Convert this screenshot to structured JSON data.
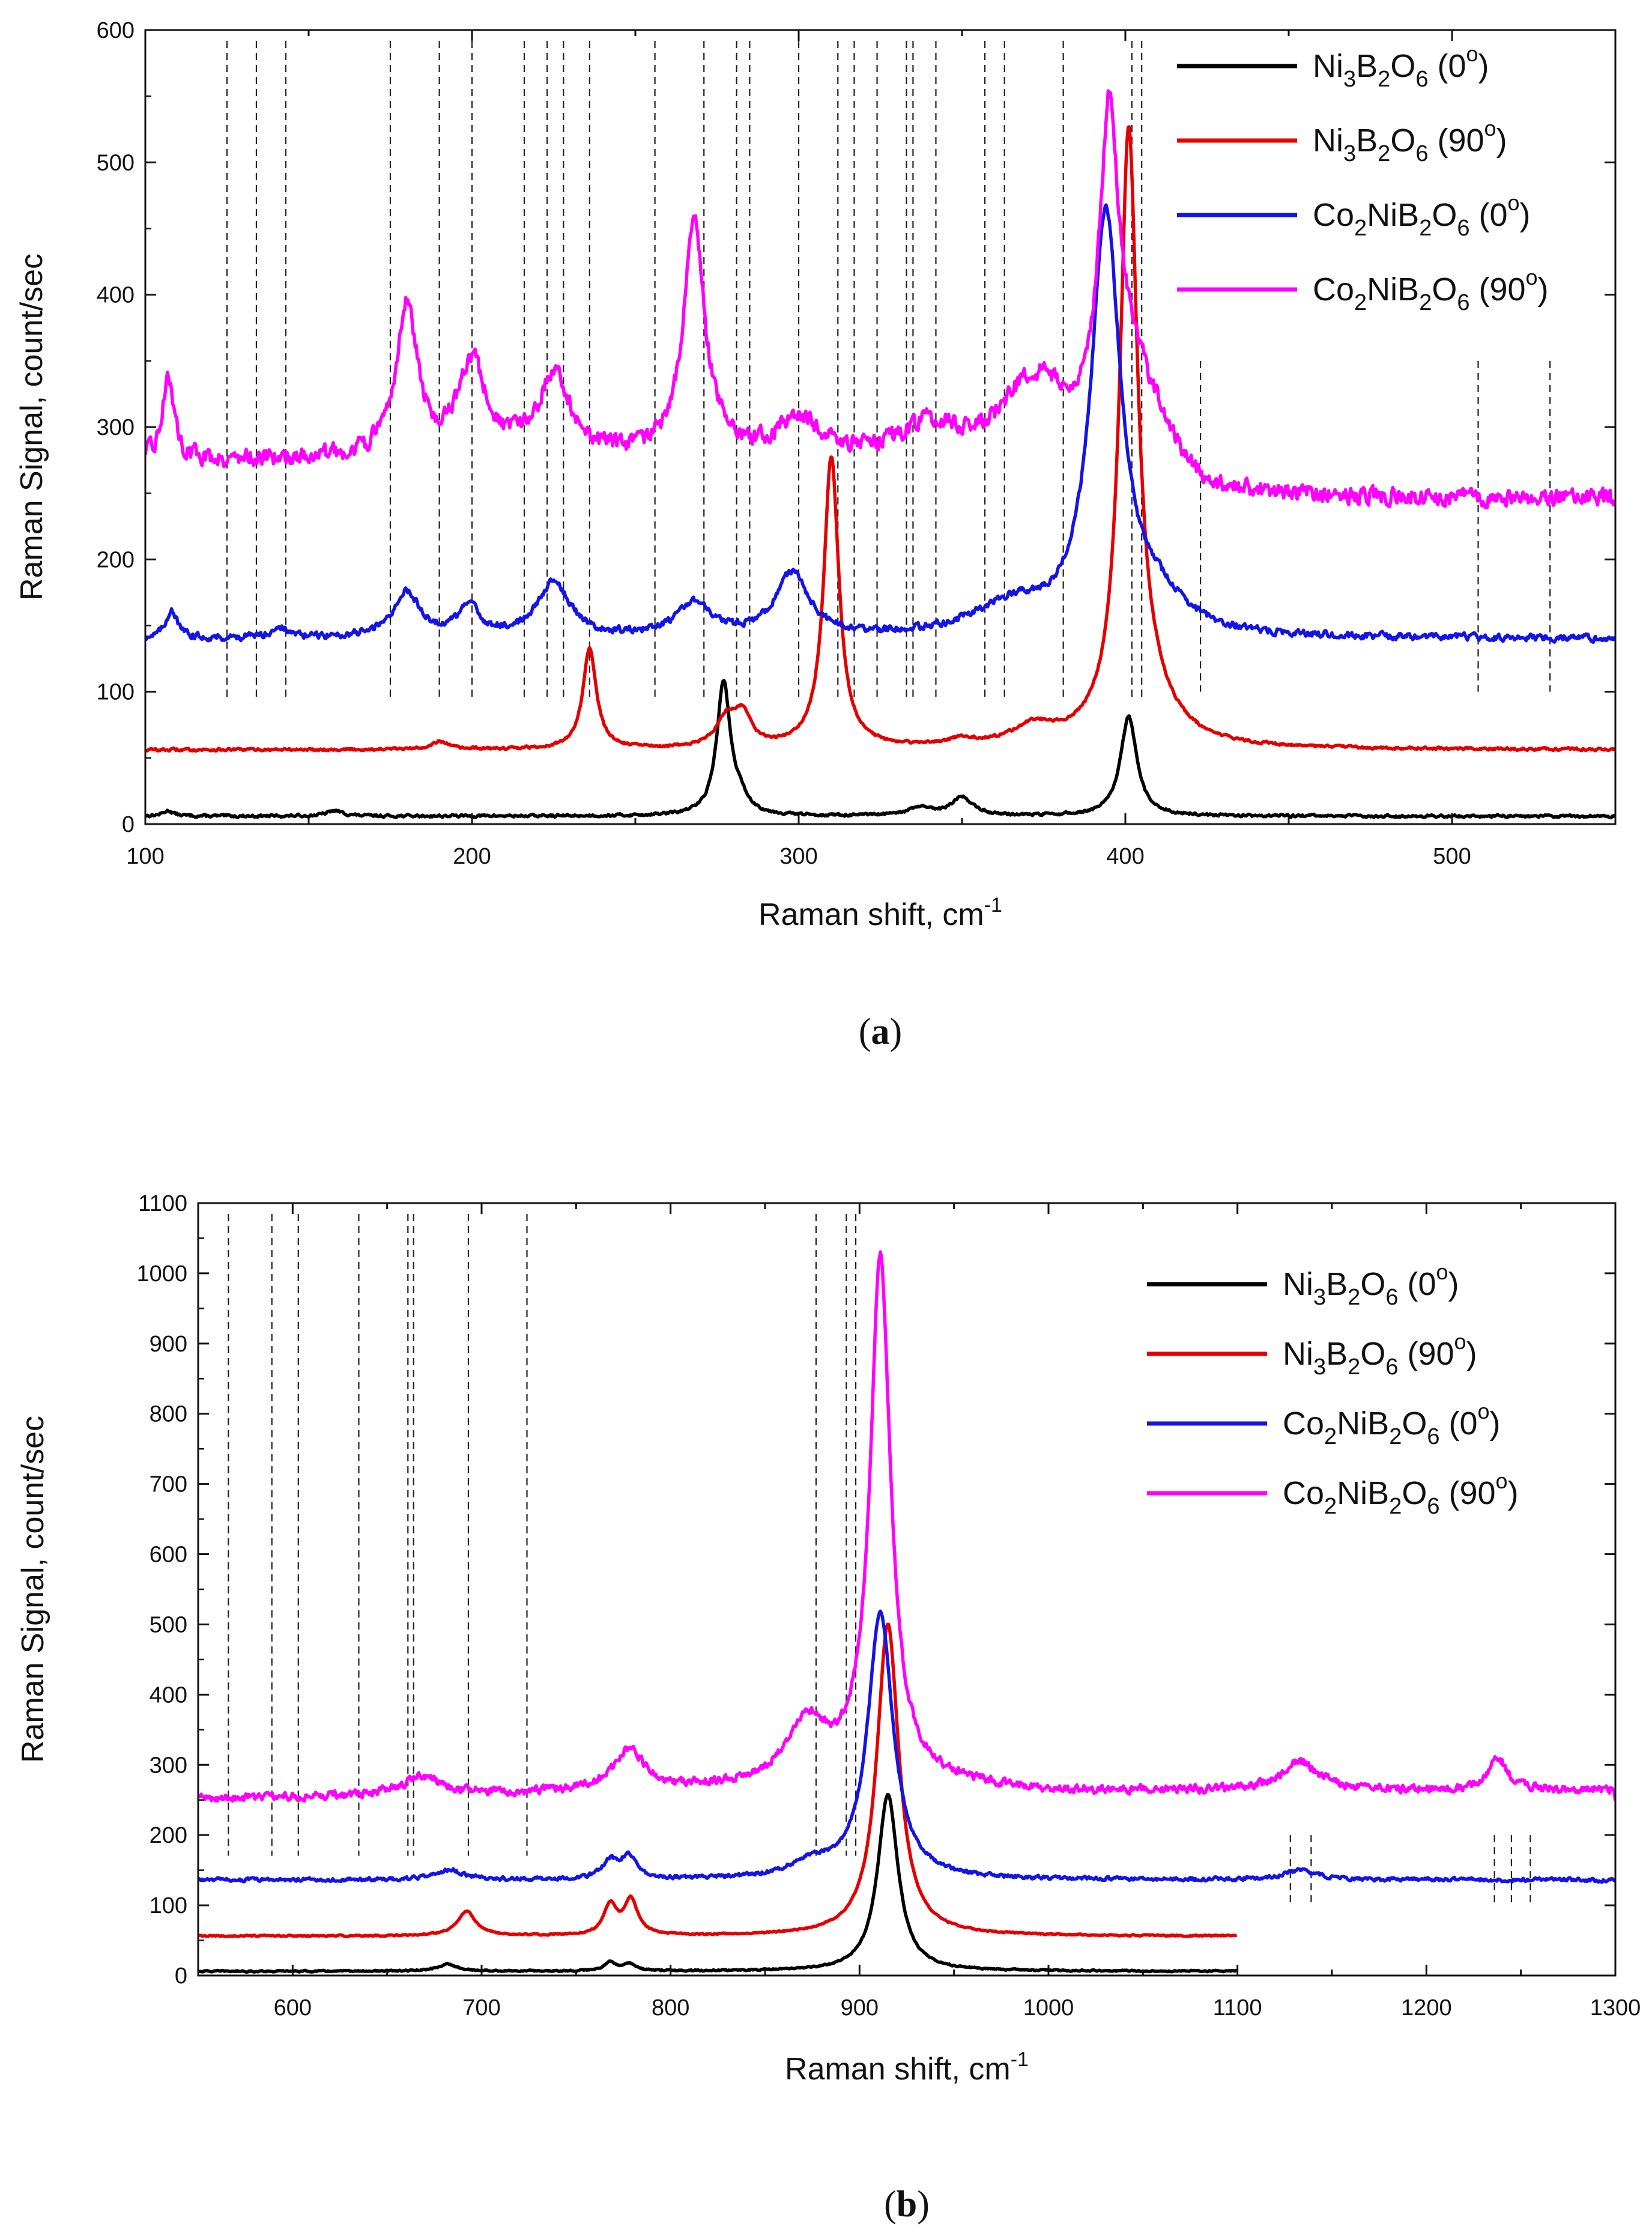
{
  "chart_data": [
    {
      "type": "line",
      "caption": "(a)",
      "xlabel": "Raman shift, cm",
      "xlabel_sup": "-1",
      "ylabel": "Raman Signal, count/sec",
      "xlim": [
        100,
        550
      ],
      "ylim": [
        0,
        600
      ],
      "xticks": [
        100,
        200,
        300,
        400,
        500
      ],
      "yticks": [
        0,
        100,
        200,
        300,
        400,
        500,
        600
      ],
      "legend_position": "top-right",
      "series": [
        {
          "name": "Ni3B2O6 (0°)",
          "legend": [
            "Ni",
            "3",
            "B",
            "2",
            "O",
            "6",
            " (0",
            "o",
            ")"
          ],
          "color": "#000000",
          "baseline": 6,
          "noise": 1.5,
          "peaks": [
            [
              107,
              4,
              2
            ],
            [
              158,
              4,
              3
            ],
            [
              277,
              100,
              2.5
            ],
            [
              282,
              10,
              3
            ],
            [
              337,
              6,
              4
            ],
            [
              350,
              14,
              4
            ],
            [
              401,
              75,
              3
            ]
          ]
        },
        {
          "name": "Ni3B2O6 (90°)",
          "legend": [
            "Ni",
            "3",
            "B",
            "2",
            "O",
            "6",
            " (90",
            "o",
            ")"
          ],
          "color": "#e50000",
          "baseline": 56,
          "noise": 1.5,
          "peaks": [
            [
              190,
              6,
              3
            ],
            [
              236,
              76,
              2.5
            ],
            [
              278,
              22,
              4
            ],
            [
              283,
              22,
              3
            ],
            [
              310,
              220,
              2.8
            ],
            [
              350,
              5,
              5
            ],
            [
              372,
              14,
              8
            ],
            [
              401,
              435,
              3.2
            ],
            [
              405,
              40,
              10
            ]
          ]
        },
        {
          "name": "Co2NiB2O6 (0°)",
          "legend": [
            "Co",
            "2",
            "NiB",
            "2",
            "O",
            "6",
            " (0",
            "o",
            ")"
          ],
          "color": "#1414e6",
          "baseline": 140,
          "noise": 4,
          "peaks": [
            [
              108,
              22,
              2
            ],
            [
              141,
              8,
              3
            ],
            [
              180,
              34,
              5
            ],
            [
              199,
              22,
              4
            ],
            [
              225,
              42,
              6
            ],
            [
              268,
              26,
              6
            ],
            [
              298,
              48,
              6
            ],
            [
              365,
              22,
              14
            ],
            [
              394,
              315,
              5.5
            ],
            [
              410,
              22,
              10
            ]
          ]
        },
        {
          "name": "Co2NiB2O6 (90°)",
          "legend": [
            "Co",
            "2",
            "NiB",
            "2",
            "O",
            "6",
            " (90",
            "o",
            ")"
          ],
          "color": "#ff00ff",
          "baseline": 275,
          "noise": 10,
          "peaks": [
            [
              107,
              65,
              2
            ],
            [
              180,
              115,
              4
            ],
            [
              200,
              70,
              5
            ],
            [
              225,
              60,
              6
            ],
            [
              268,
              175,
              4
            ],
            [
              300,
              28,
              8
            ],
            [
              340,
              22,
              10
            ],
            [
              372,
              55,
              12
            ],
            [
              395,
              230,
              3.5
            ],
            [
              402,
              60,
              8
            ]
          ],
          "tail_drop": [
            [
              100,
              0
            ],
            [
              410,
              0
            ],
            [
              425,
              -28
            ],
            [
              550,
              -30
            ]
          ]
        }
      ],
      "reference_lines": [
        125,
        134,
        143,
        175,
        190,
        200,
        216,
        223,
        228,
        236,
        256,
        271,
        281,
        285,
        300,
        312,
        317,
        324,
        333,
        335,
        342,
        357,
        363,
        381,
        402,
        405
      ],
      "reference_lines_low": [
        423,
        508,
        530
      ]
    },
    {
      "type": "line",
      "caption": "(b)",
      "xlabel": "Raman shift, cm",
      "xlabel_sup": "-1",
      "ylabel": "Raman Signal, count/sec",
      "xlim": [
        550,
        1300
      ],
      "ylim": [
        0,
        1100
      ],
      "xticks": [
        600,
        700,
        800,
        900,
        1000,
        1100,
        1200,
        1300
      ],
      "yticks": [
        0,
        100,
        200,
        300,
        400,
        500,
        600,
        700,
        800,
        900,
        1000,
        1100
      ],
      "legend_position": "top-right",
      "series": [
        {
          "name": "Ni3B2O6 (0°)",
          "legend": [
            "Ni",
            "3",
            "B",
            "2",
            "O",
            "6",
            " (0",
            "o",
            ")"
          ],
          "color": "#000000",
          "baseline": 6,
          "noise": 1.5,
          "x_end": 1100,
          "peaks": [
            [
              682,
              10,
              6
            ],
            [
              768,
              12,
              4
            ],
            [
              778,
              10,
              4
            ],
            [
              915,
              252,
              6.5
            ]
          ]
        },
        {
          "name": "Ni3B2O6 (90°)",
          "legend": [
            "Ni",
            "3",
            "B",
            "2",
            "O",
            "6",
            " (90",
            "o",
            ")"
          ],
          "color": "#e50000",
          "baseline": 56,
          "noise": 1.5,
          "x_end": 1100,
          "peaks": [
            [
              692,
              35,
              6
            ],
            [
              768,
              42,
              4
            ],
            [
              779,
              50,
              4.5
            ],
            [
              915,
              445,
              7
            ]
          ]
        },
        {
          "name": "Co2NiB2O6 (0°)",
          "legend": [
            "Co",
            "2",
            "NiB",
            "2",
            "O",
            "6",
            " (0",
            "o",
            ")"
          ],
          "color": "#1414e6",
          "baseline": 136,
          "noise": 4,
          "peaks": [
            [
              683,
              14,
              8
            ],
            [
              768,
              24,
              5
            ],
            [
              778,
              32,
              5
            ],
            [
              875,
              20,
              14
            ],
            [
              911,
              380,
              8
            ],
            [
              1133,
              14,
              10
            ]
          ]
        },
        {
          "name": "Co2NiB2O6 (90°)",
          "legend": [
            "Co",
            "2",
            "NiB",
            "2",
            "O",
            "6",
            " (90",
            "o",
            ")"
          ],
          "color": "#ff00ff",
          "baseline": 252,
          "noise": 9,
          "peaks": [
            [
              668,
              25,
              12
            ],
            [
              778,
              60,
              10
            ],
            [
              872,
              80,
              12
            ],
            [
              911,
              740,
              6.5
            ],
            [
              1133,
              40,
              12
            ],
            [
              1238,
              45,
              6
            ]
          ],
          "tail_drop": [
            [
              550,
              0
            ],
            [
              800,
              10
            ],
            [
              900,
              30
            ],
            [
              1000,
              10
            ],
            [
              1300,
              12
            ]
          ]
        }
      ],
      "reference_lines": [
        566,
        589,
        603,
        635,
        661,
        664,
        693,
        724,
        877,
        893,
        898
      ],
      "reference_lines_low": [
        1128,
        1139,
        1236,
        1245,
        1255
      ]
    }
  ]
}
